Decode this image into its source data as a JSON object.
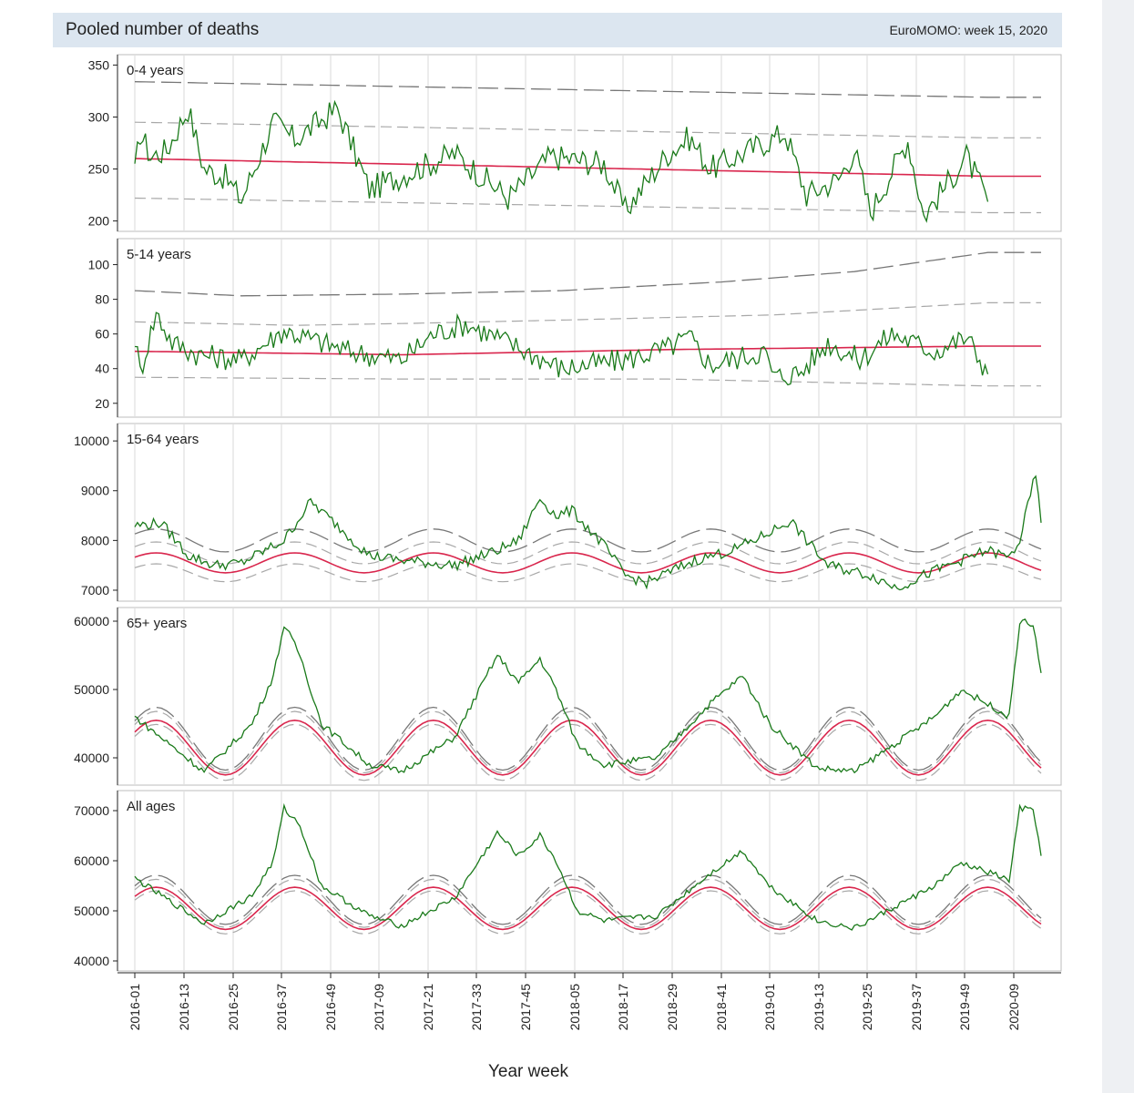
{
  "header": {
    "title": "Pooled number of deaths",
    "subtitle": "EuroMOMO: week 15, 2020"
  },
  "colors": {
    "observed": "#1a7a1a",
    "baseline": "#d9264d",
    "band_inner": "#a8a8a8",
    "band_outer": "#777777",
    "grid": "#d8d8d8",
    "header_bg": "#dce6f0"
  },
  "chart_data": [
    {
      "type": "line",
      "title": "0-4 years",
      "ylim": [
        190,
        360
      ],
      "yticks": [
        200,
        250,
        300,
        350
      ],
      "xlabel": "Year week",
      "x_ticks": [
        "2016-01",
        "2016-13",
        "2016-25",
        "2016-37",
        "2016-49",
        "2017-09",
        "2017-21",
        "2017-33",
        "2017-45",
        "2018-05",
        "2018-17",
        "2018-29",
        "2018-41",
        "2019-01",
        "2019-13",
        "2019-25",
        "2019-37",
        "2019-49",
        "2020-09"
      ],
      "series": [
        {
          "role": "observed",
          "anchors": [
            [
              0,
              245
            ],
            [
              2,
              285
            ],
            [
              6,
              262
            ],
            [
              12,
              268
            ],
            [
              20,
              308
            ],
            [
              26,
              250
            ],
            [
              34,
              242
            ],
            [
              40,
              220
            ],
            [
              52,
              295
            ],
            [
              60,
              278
            ],
            [
              76,
              308
            ],
            [
              88,
              230
            ],
            [
              104,
              248
            ],
            [
              120,
              265
            ],
            [
              140,
              222
            ],
            [
              156,
              262
            ],
            [
              176,
              255
            ],
            [
              184,
              210
            ],
            [
              200,
              265
            ],
            [
              208,
              280
            ],
            [
              216,
              250
            ],
            [
              244,
              285
            ],
            [
              252,
              225
            ],
            [
              264,
              240
            ],
            [
              270,
              268
            ],
            [
              276,
              208
            ],
            [
              290,
              278
            ],
            [
              296,
              205
            ],
            [
              306,
              240
            ],
            [
              312,
              262
            ],
            [
              320,
              218
            ]
          ],
          "noise": 13
        },
        {
          "role": "baseline",
          "anchors": [
            [
              0,
              260
            ],
            [
              320,
              243
            ]
          ]
        },
        {
          "role": "lower_2sd",
          "anchors": [
            [
              0,
              222
            ],
            [
              320,
              208
            ]
          ]
        },
        {
          "role": "upper_2sd",
          "anchors": [
            [
              0,
              295
            ],
            [
              320,
              280
            ]
          ]
        },
        {
          "role": "upper_4sd",
          "anchors": [
            [
              0,
              334
            ],
            [
              320,
              319
            ]
          ]
        }
      ]
    },
    {
      "type": "line",
      "title": "5-14 years",
      "ylim": [
        12,
        115
      ],
      "yticks": [
        20,
        40,
        60,
        80,
        100
      ],
      "xlabel": "Year week",
      "x_ticks": [
        "2016-01",
        "2016-13",
        "2016-25",
        "2016-37",
        "2016-49",
        "2017-09",
        "2017-21",
        "2017-33",
        "2017-45",
        "2018-05",
        "2018-17",
        "2018-29",
        "2018-41",
        "2019-01",
        "2019-13",
        "2019-25",
        "2019-37",
        "2019-49",
        "2020-09"
      ],
      "series": [
        {
          "role": "observed",
          "anchors": [
            [
              0,
              58
            ],
            [
              2,
              38
            ],
            [
              8,
              72
            ],
            [
              14,
              55
            ],
            [
              24,
              48
            ],
            [
              40,
              45
            ],
            [
              56,
              62
            ],
            [
              64,
              58
            ],
            [
              80,
              50
            ],
            [
              100,
              45
            ],
            [
              112,
              60
            ],
            [
              124,
              66
            ],
            [
              140,
              55
            ],
            [
              160,
              40
            ],
            [
              184,
              45
            ],
            [
              200,
              52
            ],
            [
              208,
              58
            ],
            [
              216,
              42
            ],
            [
              236,
              50
            ],
            [
              240,
              35
            ],
            [
              250,
              38
            ],
            [
              260,
              55
            ],
            [
              272,
              45
            ],
            [
              284,
              60
            ],
            [
              300,
              50
            ],
            [
              312,
              58
            ],
            [
              320,
              38
            ]
          ],
          "noise": 7
        },
        {
          "role": "baseline",
          "anchors": [
            [
              0,
              50
            ],
            [
              100,
              48
            ],
            [
              200,
              51
            ],
            [
              320,
              53
            ]
          ]
        },
        {
          "role": "lower_2sd",
          "anchors": [
            [
              0,
              35
            ],
            [
              100,
              34
            ],
            [
              200,
              34
            ],
            [
              320,
              30
            ]
          ]
        },
        {
          "role": "upper_2sd",
          "anchors": [
            [
              0,
              67
            ],
            [
              60,
              65
            ],
            [
              100,
              66
            ],
            [
              160,
              68
            ],
            [
              240,
              71
            ],
            [
              320,
              78
            ]
          ]
        },
        {
          "role": "upper_4sd",
          "anchors": [
            [
              0,
              85
            ],
            [
              40,
              82
            ],
            [
              100,
              83
            ],
            [
              160,
              85
            ],
            [
              220,
              90
            ],
            [
              270,
              96
            ],
            [
              320,
              107
            ]
          ]
        }
      ]
    },
    {
      "type": "line",
      "title": "15-64 years",
      "ylim": [
        6780,
        10350
      ],
      "yticks": [
        7000,
        8000,
        9000,
        10000
      ],
      "xlabel": "Year week",
      "x_ticks": [
        "2016-01",
        "2016-13",
        "2016-25",
        "2016-37",
        "2016-49",
        "2017-09",
        "2017-21",
        "2017-33",
        "2017-45",
        "2018-05",
        "2018-17",
        "2018-29",
        "2018-41",
        "2019-01",
        "2019-13",
        "2019-25",
        "2019-37",
        "2019-49",
        "2020-09"
      ],
      "series": [
        {
          "role": "observed",
          "anchors": [
            [
              0,
              8300
            ],
            [
              10,
              8350
            ],
            [
              20,
              7700
            ],
            [
              30,
              7500
            ],
            [
              40,
              7550
            ],
            [
              56,
              8000
            ],
            [
              66,
              8780
            ],
            [
              76,
              8300
            ],
            [
              88,
              7700
            ],
            [
              100,
              7600
            ],
            [
              120,
              7500
            ],
            [
              136,
              7800
            ],
            [
              144,
              8000
            ],
            [
              152,
              8850
            ],
            [
              158,
              8500
            ],
            [
              164,
              8600
            ],
            [
              176,
              7900
            ],
            [
              184,
              7300
            ],
            [
              192,
              7150
            ],
            [
              210,
              7600
            ],
            [
              224,
              7800
            ],
            [
              236,
              8100
            ],
            [
              246,
              8400
            ],
            [
              252,
              8000
            ],
            [
              260,
              7500
            ],
            [
              276,
              7300
            ],
            [
              286,
              7050
            ],
            [
              296,
              7300
            ],
            [
              310,
              7600
            ],
            [
              320,
              7800
            ],
            [
              328,
              7650
            ],
            [
              332,
              8000
            ],
            [
              338,
              9350
            ],
            [
              340,
              8300
            ]
          ],
          "noise": 110
        },
        {
          "role": "baseline",
          "sine": {
            "mid": 7550,
            "amp": 200,
            "trend": -0.0
          }
        },
        {
          "role": "lower_2sd",
          "sine": {
            "mid": 7350,
            "amp": 180,
            "trend": 0
          }
        },
        {
          "role": "upper_2sd",
          "sine": {
            "mid": 7750,
            "amp": 220,
            "trend": 0
          }
        },
        {
          "role": "upper_4sd",
          "sine": {
            "mid": 8000,
            "amp": 230,
            "trend": 0
          }
        }
      ]
    },
    {
      "type": "line",
      "title": "65+ years",
      "ylim": [
        36000,
        62000
      ],
      "yticks": [
        40000,
        50000,
        60000
      ],
      "xlabel": "Year week",
      "x_ticks": [
        "2016-01",
        "2016-13",
        "2016-25",
        "2016-37",
        "2016-49",
        "2017-09",
        "2017-21",
        "2017-33",
        "2017-45",
        "2018-05",
        "2018-17",
        "2018-29",
        "2018-41",
        "2019-01",
        "2019-13",
        "2019-25",
        "2019-37",
        "2019-49",
        "2020-09"
      ],
      "series": [
        {
          "role": "observed",
          "anchors": [
            [
              0,
              46000
            ],
            [
              26,
              38000
            ],
            [
              44,
              45000
            ],
            [
              52,
              52000
            ],
            [
              56,
              59500
            ],
            [
              62,
              55000
            ],
            [
              70,
              45000
            ],
            [
              88,
              39000
            ],
            [
              100,
              38000
            ],
            [
              120,
              43000
            ],
            [
              136,
              55000
            ],
            [
              144,
              51000
            ],
            [
              152,
              54500
            ],
            [
              158,
              50000
            ],
            [
              166,
              42000
            ],
            [
              176,
              39000
            ],
            [
              196,
              40000
            ],
            [
              216,
              48000
            ],
            [
              228,
              52000
            ],
            [
              238,
              45000
            ],
            [
              256,
              38500
            ],
            [
              270,
              38000
            ],
            [
              300,
              46000
            ],
            [
              310,
              50000
            ],
            [
              324,
              47000
            ],
            [
              328,
              46000
            ],
            [
              332,
              60000
            ],
            [
              337,
              59500
            ],
            [
              340,
              52500
            ]
          ],
          "noise": 500
        },
        {
          "role": "baseline",
          "sine": {
            "mid": 41500,
            "amp": 4000,
            "trend": 0
          }
        },
        {
          "role": "lower_2sd",
          "sine": {
            "mid": 40800,
            "amp": 4100,
            "trend": 0
          }
        },
        {
          "role": "upper_2sd",
          "sine": {
            "mid": 42300,
            "amp": 4500,
            "trend": 0
          }
        },
        {
          "role": "upper_4sd",
          "sine": {
            "mid": 42800,
            "amp": 4600,
            "trend": 0
          }
        }
      ]
    },
    {
      "type": "line",
      "title": "All ages",
      "ylim": [
        38000,
        74000
      ],
      "yticks": [
        40000,
        50000,
        60000,
        70000
      ],
      "xlabel": "Year week",
      "x_ticks": [
        "2016-01",
        "2016-13",
        "2016-25",
        "2016-37",
        "2016-49",
        "2017-09",
        "2017-21",
        "2017-33",
        "2017-45",
        "2018-05",
        "2018-17",
        "2018-29",
        "2018-41",
        "2019-01",
        "2019-13",
        "2019-25",
        "2019-37",
        "2019-49",
        "2020-09"
      ],
      "series": [
        {
          "role": "observed",
          "anchors": [
            [
              0,
              56500
            ],
            [
              26,
              47500
            ],
            [
              44,
              53000
            ],
            [
              52,
              60000
            ],
            [
              56,
              70500
            ],
            [
              62,
              67000
            ],
            [
              70,
              55000
            ],
            [
              88,
              49000
            ],
            [
              100,
              47000
            ],
            [
              120,
              52500
            ],
            [
              136,
              65500
            ],
            [
              144,
              61000
            ],
            [
              152,
              65000
            ],
            [
              158,
              60000
            ],
            [
              166,
              50000
            ],
            [
              176,
              48000
            ],
            [
              196,
              49000
            ],
            [
              216,
              57500
            ],
            [
              228,
              62000
            ],
            [
              238,
              55000
            ],
            [
              256,
              48000
            ],
            [
              270,
              46500
            ],
            [
              300,
              55000
            ],
            [
              310,
              59500
            ],
            [
              324,
              57000
            ],
            [
              328,
              56000
            ],
            [
              332,
              70500
            ],
            [
              337,
              70000
            ],
            [
              340,
              61500
            ]
          ],
          "noise": 600
        },
        {
          "role": "baseline",
          "sine": {
            "mid": 50500,
            "amp": 4200,
            "trend": 0
          }
        },
        {
          "role": "lower_2sd",
          "sine": {
            "mid": 49700,
            "amp": 4300,
            "trend": 0
          }
        },
        {
          "role": "upper_2sd",
          "sine": {
            "mid": 51500,
            "amp": 4800,
            "trend": 0
          }
        },
        {
          "role": "upper_4sd",
          "sine": {
            "mid": 52200,
            "amp": 4900,
            "trend": 0
          }
        }
      ]
    }
  ]
}
